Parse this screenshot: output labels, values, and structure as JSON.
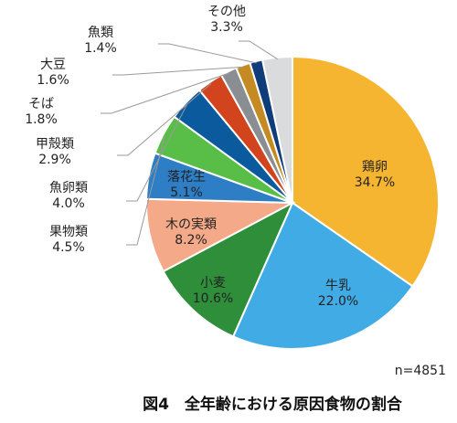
{
  "chart_data": {
    "type": "pie",
    "caption": "図4　全年齢における原因食物の割合",
    "n_label": "n=4851",
    "slices": [
      {
        "name": "鶏卵",
        "value": 34.7,
        "label": "34.7%",
        "color": "#F6B530"
      },
      {
        "name": "牛乳",
        "value": 22.0,
        "label": "22.0%",
        "color": "#41ABE6"
      },
      {
        "name": "小麦",
        "value": 10.6,
        "label": "10.6%",
        "color": "#2E8E3A"
      },
      {
        "name": "木の実類",
        "value": 8.2,
        "label": "8.2%",
        "color": "#F4A988"
      },
      {
        "name": "落花生",
        "value": 5.1,
        "label": "5.1%",
        "color": "#2E7EC6"
      },
      {
        "name": "果物類",
        "value": 4.5,
        "label": "4.5%",
        "color": "#59BE48"
      },
      {
        "name": "魚卵類",
        "value": 4.0,
        "label": "4.0%",
        "color": "#0B5A9E"
      },
      {
        "name": "甲殻類",
        "value": 2.9,
        "label": "2.9%",
        "color": "#D2441E"
      },
      {
        "name": "そば",
        "value": 1.8,
        "label": "1.8%",
        "color": "#8A8E93"
      },
      {
        "name": "大豆",
        "value": 1.6,
        "label": "1.6%",
        "color": "#C58A22"
      },
      {
        "name": "魚類",
        "value": 1.4,
        "label": "1.4%",
        "color": "#0E3D7A"
      },
      {
        "name": "その他",
        "value": 3.3,
        "label": "3.3%",
        "color": "#D9DBDD"
      }
    ]
  }
}
